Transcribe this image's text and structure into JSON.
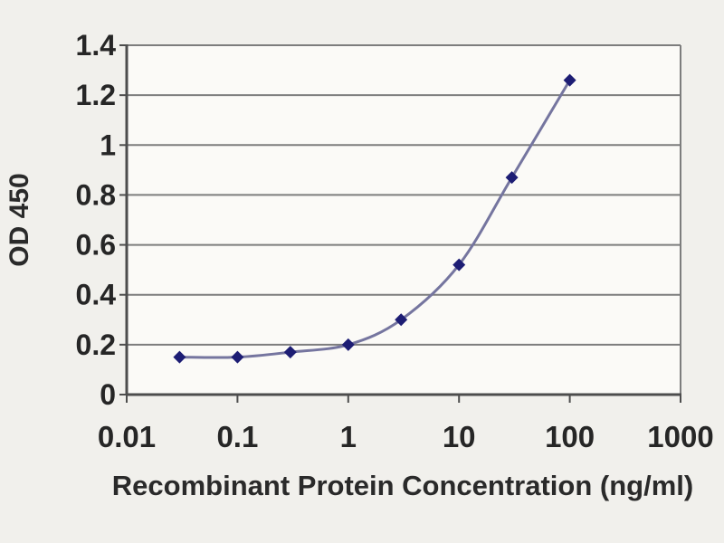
{
  "chart_data": {
    "type": "line",
    "title": "",
    "xlabel": "Recombinant Protein Concentration (ng/ml)",
    "ylabel": "OD 450",
    "x_scale": "log",
    "xlim": [
      0.01,
      1000
    ],
    "ylim": [
      0,
      1.4
    ],
    "x": [
      0.03,
      0.1,
      0.3,
      1,
      3,
      10,
      30,
      100
    ],
    "series": [
      {
        "name": "OD 450",
        "values": [
          0.15,
          0.15,
          0.17,
          0.2,
          0.3,
          0.52,
          0.87,
          1.26
        ]
      }
    ],
    "x_ticks": [
      0.01,
      0.1,
      1,
      10,
      100,
      1000
    ],
    "x_tick_labels": [
      "0.01",
      "0.1",
      "1",
      "10",
      "100",
      "1000"
    ],
    "y_ticks": [
      0,
      0.2,
      0.4,
      0.6,
      0.8,
      1,
      1.2,
      1.4
    ],
    "y_tick_labels": [
      "0",
      "0.2",
      "0.4",
      "0.6",
      "0.8",
      "1",
      "1.2",
      "1.4"
    ],
    "grid": "horizontal",
    "legend": "none",
    "marker_shape": "diamond",
    "line_style": "smooth",
    "colors": {
      "background": "#f1f0ec",
      "plot_background": "#fbfaf7",
      "grid": "#7d7d7d",
      "axis": "#4d4d4d",
      "line": "#75759f",
      "marker": "#1d1d74",
      "text": "#262626"
    }
  }
}
